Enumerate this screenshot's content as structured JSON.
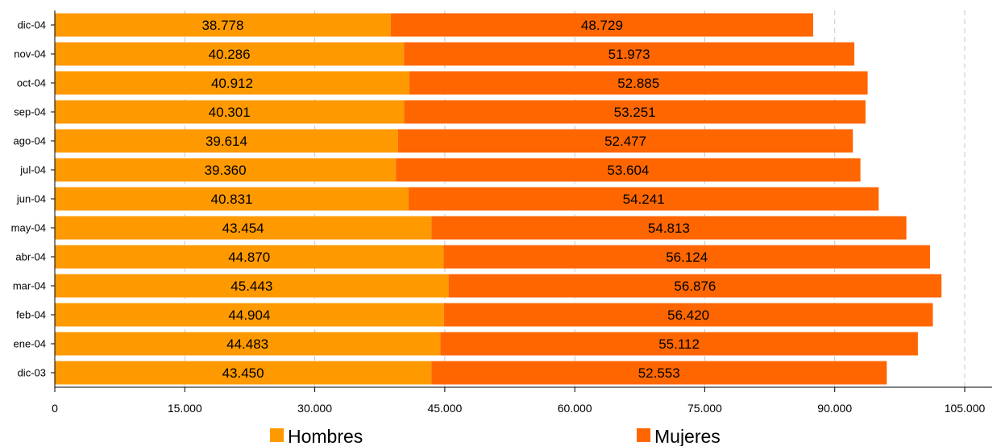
{
  "chart_data": {
    "type": "bar",
    "orientation": "horizontal",
    "stacked": true,
    "categories": [
      "dic-04",
      "nov-04",
      "oct-04",
      "sep-04",
      "ago-04",
      "jul-04",
      "jun-04",
      "may-04",
      "abr-04",
      "mar-04",
      "feb-04",
      "ene-04",
      "dic-03"
    ],
    "series": [
      {
        "name": "Hombres",
        "color": "#FF9900",
        "values": [
          38778,
          40286,
          40912,
          40301,
          39614,
          39360,
          40831,
          43454,
          44870,
          45443,
          44904,
          44483,
          43450
        ],
        "labels": [
          "38.778",
          "40.286",
          "40.912",
          "40.301",
          "39.614",
          "39.360",
          "40.831",
          "43.454",
          "44.870",
          "45.443",
          "44.904",
          "44.483",
          "43.450"
        ]
      },
      {
        "name": "Mujeres",
        "color": "#FF6600",
        "values": [
          48729,
          51973,
          52885,
          53251,
          52477,
          53604,
          54241,
          54813,
          56124,
          56876,
          56420,
          55112,
          52553
        ],
        "labels": [
          "48.729",
          "51.973",
          "52.885",
          "53.251",
          "52.477",
          "53.604",
          "54.241",
          "54.813",
          "56.124",
          "56.876",
          "56.420",
          "55.112",
          "52.553"
        ]
      }
    ],
    "xlim": [
      0,
      105000
    ],
    "xticks": [
      0,
      15000,
      30000,
      45000,
      60000,
      75000,
      90000,
      105000
    ],
    "xtick_labels": [
      "0",
      "15.000",
      "30.000",
      "45.000",
      "60.000",
      "75.000",
      "90.000",
      "105.000"
    ],
    "grid": "vertical dashed",
    "legend_position": "bottom",
    "title": "",
    "xlabel": "",
    "ylabel": ""
  }
}
